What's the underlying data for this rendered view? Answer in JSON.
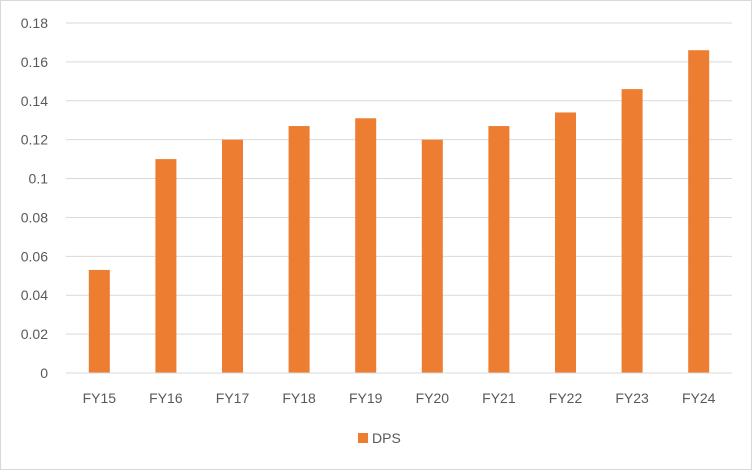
{
  "chart_data": {
    "type": "bar",
    "title": "",
    "xlabel": "",
    "ylabel": "",
    "categories": [
      "FY15",
      "FY16",
      "FY17",
      "FY18",
      "FY19",
      "FY20",
      "FY21",
      "FY22",
      "FY23",
      "FY24"
    ],
    "series": [
      {
        "name": "DPS",
        "color": "#ed7d31",
        "values": [
          0.053,
          0.11,
          0.12,
          0.127,
          0.131,
          0.12,
          0.127,
          0.134,
          0.146,
          0.166
        ]
      }
    ],
    "ylim": [
      0,
      0.18
    ],
    "yticks": [
      "0",
      "0.02",
      "0.04",
      "0.06",
      "0.08",
      "0.1",
      "0.12",
      "0.14",
      "0.16",
      "0.18"
    ],
    "grid": true,
    "legend_position": "bottom"
  }
}
